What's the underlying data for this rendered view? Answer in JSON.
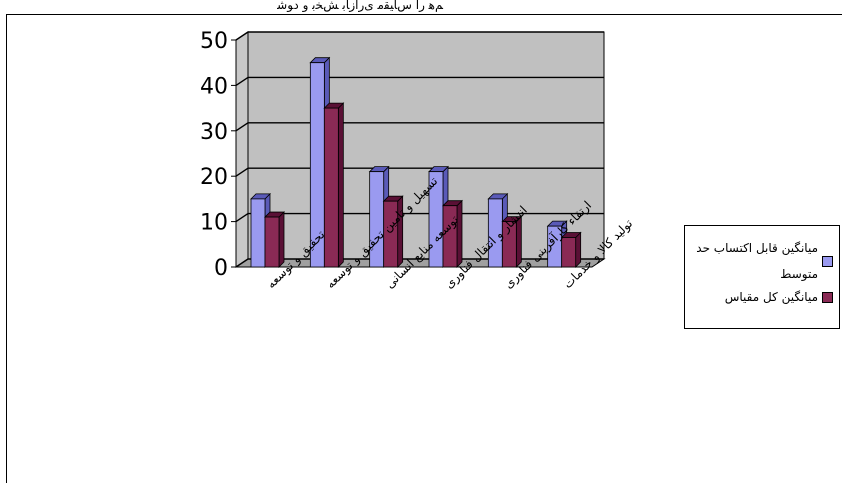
{
  "caption": "ﻢﻫ ﺭﺍ ﺱﺎﯿﻘﻣ ﯼﺭﺍﺯﺎﺑ ﺶﺨﺑ ﻭ ﺩﻮﺷ",
  "colors": {
    "series1": "#9a9af0",
    "series1_side": "#5a5ab8",
    "series2": "#8a2a55",
    "series2_side": "#5a1035",
    "plot_bg": "#c0c0c0",
    "wall_bg": "#c8c8c8"
  },
  "chart_data": {
    "type": "bar",
    "categories": [
      "تحقیق و توسعه",
      "تسهیل و تامین تحقیق و توسعه",
      "توسعه منابع انسانی",
      "انتشار و انتقال فناوری",
      "ارتقاء کارآفرینی فناوری",
      "تولید کالا و خدمات"
    ],
    "series": [
      {
        "name": "میانگین قابل اکتساب حد متوسط",
        "values": [
          15,
          45,
          21,
          21,
          15,
          9
        ]
      },
      {
        "name": "میانگین کل مقیاس",
        "values": [
          11,
          35,
          14.5,
          13.5,
          10,
          6.5
        ]
      }
    ],
    "y_ticks": [
      "0",
      "10",
      "20",
      "30",
      "40",
      "50"
    ],
    "ylim": [
      0,
      50
    ],
    "grid": true,
    "legend_position": "right"
  }
}
